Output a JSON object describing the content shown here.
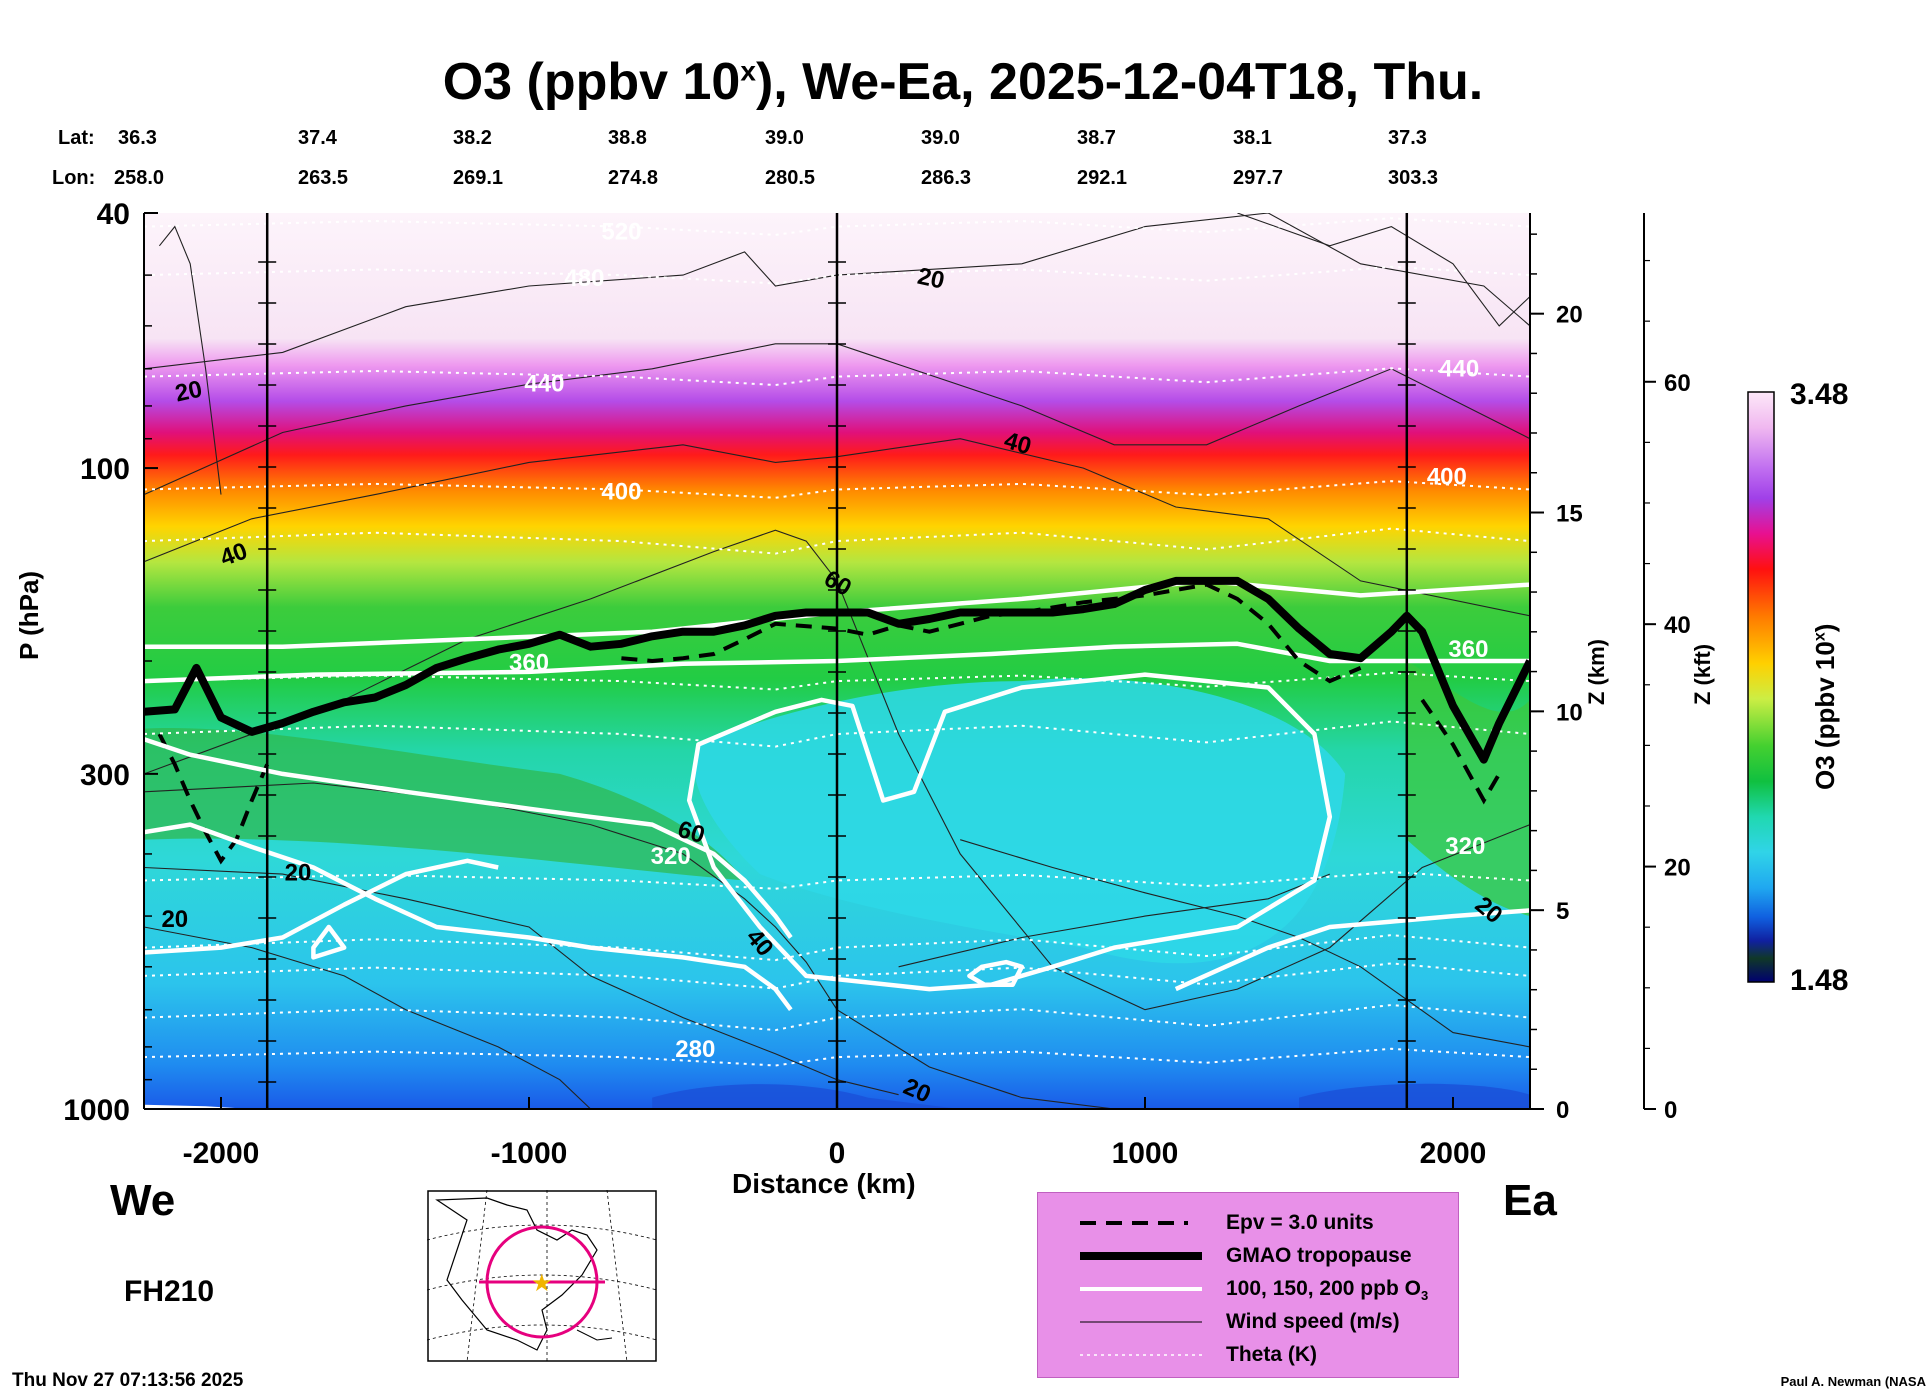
{
  "chart_data": {
    "type": "heatmap",
    "title": {
      "main": "O3 (ppbv 10",
      "exp": "x",
      "rest": "), We-Ea, 2025-12-04T18, Thu."
    },
    "lat_label": "Lat:",
    "lon_label": "Lon:",
    "lats": [
      "36.3",
      "37.4",
      "38.2",
      "38.8",
      "39.0",
      "39.0",
      "38.7",
      "38.1",
      "37.3"
    ],
    "lons": [
      "258.0",
      "263.5",
      "269.1",
      "274.8",
      "280.5",
      "286.3",
      "292.1",
      "297.7",
      "303.3"
    ],
    "xlabel": "Distance (km)",
    "ylabel": "P (hPa)",
    "xlim": [
      -2250,
      2250
    ],
    "x_ticks": [
      -2000,
      -1000,
      0,
      1000,
      2000
    ],
    "x_tick_labels": [
      "-2000",
      "-1000",
      "0",
      "1000",
      "2000"
    ],
    "ylim_hpa": [
      1000,
      40
    ],
    "y_scale": "log",
    "y_ticks": [
      40,
      100,
      300,
      1000
    ],
    "y_tick_labels": [
      "40",
      "100",
      "300",
      "1000"
    ],
    "z_km_label": "Z (km)",
    "z_km_ticks": [
      0,
      5,
      10,
      15,
      20
    ],
    "z_km_labels": [
      "0",
      "5",
      "10",
      "15",
      "20"
    ],
    "z_kft_label": "Z (kft)",
    "z_kft_ticks": [
      0,
      20,
      40,
      60
    ],
    "z_kft_labels": [
      "0",
      "20",
      "40",
      "60"
    ],
    "colorbar": {
      "label_main": "O3 (ppbv 10",
      "label_exp": "x",
      "label_close": ")",
      "max": "3.48",
      "min": "1.48"
    },
    "tropopause_hpa": [
      [
        -2250,
        240
      ],
      [
        -2150,
        238
      ],
      [
        -2080,
        205
      ],
      [
        -2000,
        245
      ],
      [
        -1900,
        258
      ],
      [
        -1800,
        250
      ],
      [
        -1700,
        240
      ],
      [
        -1600,
        232
      ],
      [
        -1500,
        228
      ],
      [
        -1400,
        218
      ],
      [
        -1300,
        205
      ],
      [
        -1200,
        198
      ],
      [
        -1100,
        192
      ],
      [
        -1000,
        188
      ],
      [
        -900,
        182
      ],
      [
        -800,
        190
      ],
      [
        -700,
        188
      ],
      [
        -600,
        183
      ],
      [
        -500,
        180
      ],
      [
        -400,
        180
      ],
      [
        -300,
        176
      ],
      [
        -200,
        170
      ],
      [
        -100,
        168
      ],
      [
        0,
        168
      ],
      [
        100,
        168
      ],
      [
        200,
        175
      ],
      [
        300,
        172
      ],
      [
        400,
        168
      ],
      [
        500,
        168
      ],
      [
        600,
        168
      ],
      [
        700,
        168
      ],
      [
        800,
        166
      ],
      [
        900,
        163
      ],
      [
        1000,
        155
      ],
      [
        1100,
        150
      ],
      [
        1200,
        150
      ],
      [
        1300,
        150
      ],
      [
        1400,
        160
      ],
      [
        1500,
        178
      ],
      [
        1600,
        195
      ],
      [
        1700,
        198
      ],
      [
        1800,
        180
      ],
      [
        1850,
        170
      ],
      [
        1900,
        180
      ],
      [
        2000,
        235
      ],
      [
        2100,
        285
      ],
      [
        2150,
        250
      ],
      [
        2250,
        200
      ]
    ],
    "epv_hpa": [
      [
        -700,
        198
      ],
      [
        -600,
        200
      ],
      [
        -500,
        198
      ],
      [
        -400,
        195
      ],
      [
        -300,
        185
      ],
      [
        -200,
        175
      ],
      [
        0,
        178
      ],
      [
        100,
        182
      ],
      [
        200,
        176
      ],
      [
        300,
        180
      ],
      [
        400,
        175
      ],
      [
        500,
        170
      ],
      [
        600,
        168
      ],
      [
        700,
        165
      ],
      [
        800,
        162
      ],
      [
        900,
        160
      ],
      [
        1000,
        158
      ],
      [
        1100,
        155
      ],
      [
        1200,
        152
      ],
      [
        1300,
        160
      ],
      [
        1400,
        175
      ],
      [
        1500,
        200
      ],
      [
        1600,
        215
      ],
      [
        1700,
        205
      ]
    ],
    "theta_levels": [
      {
        "value": "280",
        "hpa": 830,
        "show": true
      },
      {
        "value": "320",
        "hpa": 440,
        "show": true
      },
      {
        "value": "360",
        "hpa": 215,
        "show": true
      },
      {
        "value": "400",
        "hpa": 108,
        "show": true
      },
      {
        "value": "440",
        "hpa": 72,
        "show": true
      },
      {
        "value": "480",
        "hpa": 50,
        "show": true
      },
      {
        "value": "520",
        "hpa": 42,
        "show": true
      }
    ],
    "vertical_lines_km": [
      -1850,
      0,
      1850
    ],
    "left_label": "We",
    "right_label": "Ea",
    "forecast_label": "FH210",
    "legend": [
      {
        "style": "dashed",
        "label": "Epv = 3.0 units"
      },
      {
        "style": "thick",
        "label": "GMAO tropopause"
      },
      {
        "style": "white",
        "label_main": "100, 150, 200 ppb O",
        "label_sub": "3"
      },
      {
        "style": "thin",
        "label": "Wind speed (m/s)"
      },
      {
        "style": "dotted",
        "label": "Theta (K)"
      }
    ],
    "wind_labels": [
      "20",
      "20",
      "40",
      "20",
      "40",
      "60",
      "60",
      "40",
      "20",
      "20",
      "20"
    ],
    "o3_contour_labels": [
      "440",
      "400",
      "360",
      "400",
      "440",
      "320",
      "360",
      "320"
    ]
  },
  "footer": {
    "timestamp": "Thu Nov 27 07:13:56 2025",
    "credit": "Paul A. Newman (NASA"
  },
  "colors": {
    "legend_bg": "#e890e8",
    "map_marker": "#e6007e",
    "star": "#f0b400"
  }
}
